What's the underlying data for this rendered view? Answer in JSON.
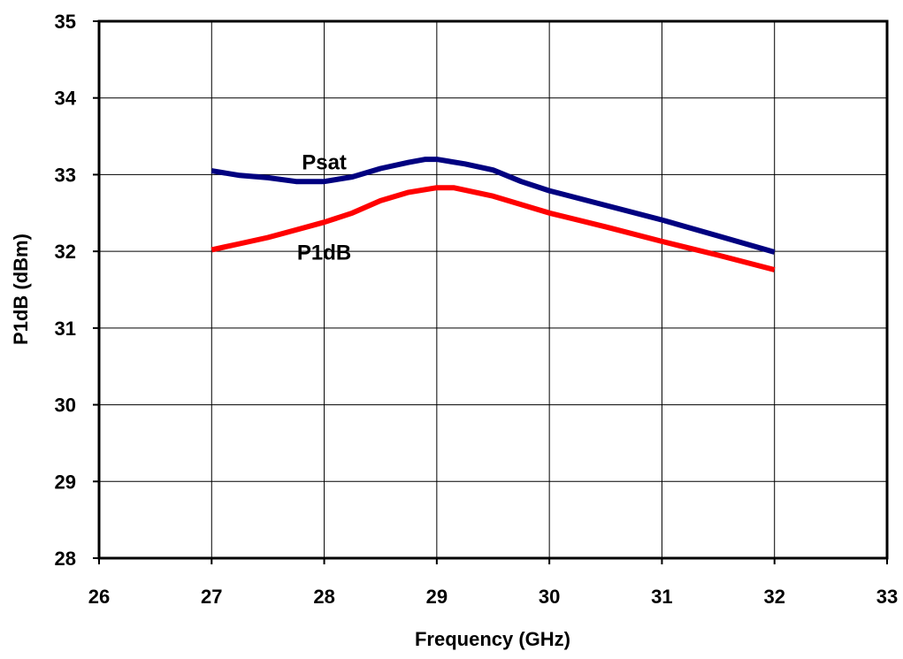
{
  "chart_data": {
    "type": "line",
    "title": "",
    "xlabel": "Frequency (GHz)",
    "ylabel": "P1dB (dBm)",
    "xlim": [
      26,
      33
    ],
    "ylim": [
      28,
      35
    ],
    "x_ticks": [
      "26",
      "27",
      "28",
      "29",
      "30",
      "31",
      "32",
      "33"
    ],
    "y_ticks": [
      "28",
      "29",
      "30",
      "31",
      "32",
      "33",
      "34",
      "35"
    ],
    "grid": true,
    "series": [
      {
        "name": "Psat",
        "color": "#000080",
        "points": [
          [
            27.0,
            33.05
          ],
          [
            27.25,
            32.99
          ],
          [
            27.5,
            32.96
          ],
          [
            27.75,
            32.91
          ],
          [
            28.0,
            32.91
          ],
          [
            28.25,
            32.97
          ],
          [
            28.5,
            33.08
          ],
          [
            28.75,
            33.16
          ],
          [
            28.9,
            33.2
          ],
          [
            29.0,
            33.2
          ],
          [
            29.25,
            33.14
          ],
          [
            29.5,
            33.06
          ],
          [
            29.75,
            32.91
          ],
          [
            30.0,
            32.79
          ],
          [
            30.5,
            32.6
          ],
          [
            31.0,
            32.41
          ],
          [
            31.5,
            32.2
          ],
          [
            32.0,
            31.99
          ]
        ]
      },
      {
        "name": "P1dB",
        "color": "#ff0000",
        "points": [
          [
            27.0,
            32.02
          ],
          [
            27.25,
            32.1
          ],
          [
            27.5,
            32.18
          ],
          [
            27.75,
            32.28
          ],
          [
            28.0,
            32.38
          ],
          [
            28.25,
            32.5
          ],
          [
            28.5,
            32.66
          ],
          [
            28.75,
            32.77
          ],
          [
            29.0,
            32.83
          ],
          [
            29.15,
            32.83
          ],
          [
            29.5,
            32.72
          ],
          [
            29.75,
            32.61
          ],
          [
            30.0,
            32.5
          ],
          [
            30.5,
            32.32
          ],
          [
            31.0,
            32.13
          ],
          [
            31.5,
            31.95
          ],
          [
            32.0,
            31.76
          ]
        ]
      }
    ],
    "annotations": [
      {
        "text": "Psat",
        "x": 28.0,
        "y": 33.07
      },
      {
        "text": "P1dB",
        "x": 28.0,
        "y": 31.89
      }
    ]
  }
}
